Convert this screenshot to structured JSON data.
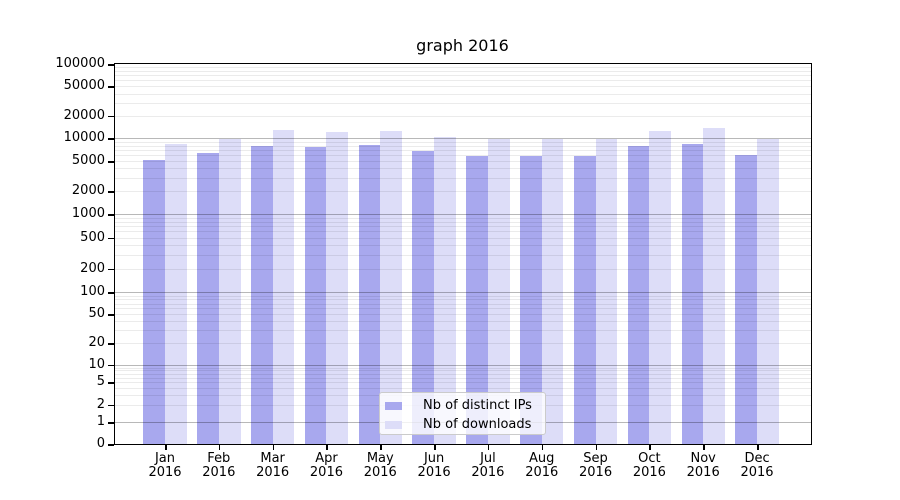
{
  "chart_data": {
    "type": "bar",
    "title": "graph 2016",
    "categories": [
      "Jan 2016",
      "Feb 2016",
      "Mar 2016",
      "Apr 2016",
      "May 2016",
      "Jun 2016",
      "Jul 2016",
      "Aug 2016",
      "Sep 2016",
      "Oct 2016",
      "Nov 2016",
      "Dec 2016"
    ],
    "series": [
      {
        "name": "Nb of distinct IPs",
        "color": "#a8a8ee",
        "values": [
          5200,
          6400,
          7800,
          7700,
          8100,
          6700,
          5900,
          5800,
          5900,
          7900,
          8300,
          6100
        ]
      },
      {
        "name": "Nb of downloads",
        "color": "#ddddf8",
        "values": [
          8400,
          9800,
          13000,
          12000,
          12500,
          10500,
          9700,
          9700,
          9800,
          12600,
          13700,
          9800
        ]
      }
    ],
    "y_ticks": [
      100000,
      50000,
      20000,
      10000,
      5000,
      2000,
      1000,
      500,
      200,
      100,
      50,
      20,
      10,
      5,
      2,
      1,
      0
    ],
    "ylim": [
      0,
      100000
    ],
    "yscale": "symlog",
    "grid": "both",
    "legend_position": "lower center",
    "xlabel": "",
    "ylabel": ""
  }
}
